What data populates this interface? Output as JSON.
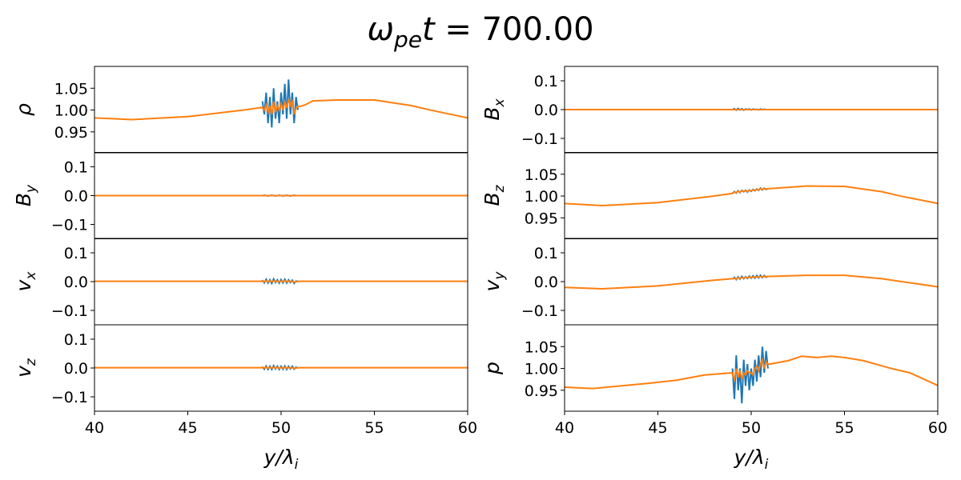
{
  "chart_data": {
    "type": "line",
    "title": {
      "symbol": "ω",
      "sub": "pe",
      "var": "t",
      "value": " = 700.00"
    },
    "xlabel": {
      "main": "y/λ",
      "sub": "i"
    },
    "xlim": [
      40,
      60
    ],
    "xticks": [
      "40",
      "45",
      "50",
      "55",
      "60"
    ],
    "grid": false,
    "colors": {
      "blue": "#1f77b4",
      "orange": "#ff7f0e"
    },
    "noise_x": [
      49.0,
      49.1,
      49.2,
      49.3,
      49.4,
      49.5,
      49.6,
      49.7,
      49.8,
      49.9,
      50.0,
      50.1,
      50.2,
      50.3,
      50.4,
      50.5,
      50.6,
      50.7,
      50.8,
      50.9
    ],
    "panels": [
      {
        "id": "rho",
        "column": "left",
        "row": 0,
        "ylabel": {
          "main": "ρ",
          "sub": ""
        },
        "ylim": [
          0.902,
          1.1
        ],
        "yticks": [
          "0.95",
          "1.00",
          "1.05"
        ],
        "orange": {
          "x": [
            40,
            42,
            45,
            48,
            49,
            51.0,
            51.3,
            51.7,
            53,
            55,
            57,
            58,
            60
          ],
          "y": [
            0.982,
            0.978,
            0.985,
            1.0,
            1.006,
            1.008,
            1.012,
            1.021,
            1.023,
            1.023,
            1.01,
            1.0,
            0.982
          ]
        },
        "orange_noise": [
          1.005,
          1.0,
          1.012,
          0.995,
          1.01,
          0.99,
          1.02,
          0.995,
          1.01,
          1.0,
          1.015,
          1.0,
          1.02,
          1.005,
          1.025,
          1.01,
          1.02,
          0.99,
          1.005,
          1.008
        ],
        "blue": [
          1.02,
          0.99,
          1.04,
          0.97,
          1.03,
          0.96,
          1.05,
          0.98,
          1.02,
          0.97,
          1.04,
          0.99,
          1.06,
          0.98,
          1.07,
          0.99,
          1.04,
          0.97,
          1.03,
          1.0
        ]
      },
      {
        "id": "By",
        "column": "left",
        "row": 1,
        "ylabel": {
          "main": "B",
          "sub": "y"
        },
        "ylim": [
          -0.15,
          0.15
        ],
        "yticks": [
          "−0.1",
          "0.0",
          "0.1"
        ],
        "orange": {
          "x": [
            40,
            60
          ],
          "y": [
            0,
            0
          ]
        },
        "orange_noise": null,
        "blue": [
          0,
          0.001,
          0,
          -0.001,
          0,
          0.001,
          0,
          -0.001,
          0,
          0.001,
          0,
          -0.001,
          0,
          0.001,
          0,
          -0.001,
          0,
          0.001,
          0,
          0
        ]
      },
      {
        "id": "vx",
        "column": "left",
        "row": 2,
        "ylabel": {
          "main": "v",
          "sub": "x"
        },
        "ylim": [
          -0.15,
          0.15
        ],
        "yticks": [
          "−0.1",
          "0.0",
          "0.1"
        ],
        "orange": {
          "x": [
            40,
            49,
            51,
            60
          ],
          "y": [
            0.001,
            0.001,
            0.001,
            0.001
          ]
        },
        "orange_noise": [
          0.002,
          0,
          0.003,
          -0.001,
          0.002,
          0,
          0.003,
          0,
          0.002,
          -0.001,
          0.002,
          0,
          0.003,
          -0.001,
          0.002,
          0,
          0.001,
          -0.002,
          0,
          0.001
        ],
        "blue": [
          0.005,
          -0.004,
          0.008,
          -0.005,
          0.006,
          -0.006,
          0.009,
          -0.003,
          0.006,
          -0.005,
          0.007,
          -0.004,
          0.008,
          -0.005,
          0.006,
          -0.003,
          0.005,
          -0.006,
          0.002,
          0
        ]
      },
      {
        "id": "vz",
        "column": "left",
        "row": 3,
        "ylabel": {
          "main": "v",
          "sub": "z"
        },
        "ylim": [
          -0.15,
          0.15
        ],
        "yticks": [
          "−0.1",
          "0.0",
          "0.1"
        ],
        "orange": {
          "x": [
            40,
            49,
            51,
            60
          ],
          "y": [
            0.001,
            0.001,
            0.001,
            0.001
          ]
        },
        "orange_noise": [
          0.002,
          0,
          0.003,
          -0.001,
          0.002,
          0,
          0.003,
          0,
          0.002,
          -0.001,
          0.002,
          0,
          0.003,
          -0.001,
          0.002,
          0,
          0.001,
          -0.002,
          0,
          0.001
        ],
        "blue": [
          0.004,
          -0.004,
          0.007,
          -0.005,
          0.006,
          -0.005,
          0.008,
          -0.003,
          0.006,
          -0.005,
          0.006,
          -0.004,
          0.007,
          -0.005,
          0.006,
          -0.003,
          0.006,
          -0.004,
          0.003,
          0
        ]
      },
      {
        "id": "Bx",
        "column": "right",
        "row": 0,
        "ylabel": {
          "main": "B",
          "sub": "x"
        },
        "ylim": [
          -0.15,
          0.15
        ],
        "yticks": [
          "−0.1",
          "0.0",
          "0.1"
        ],
        "orange": {
          "x": [
            40,
            60
          ],
          "y": [
            0,
            0
          ]
        },
        "orange_noise": null,
        "blue": [
          0,
          0.003,
          -0.002,
          0.004,
          -0.001,
          0.003,
          -0.002,
          0.002,
          0,
          0.002,
          -0.001,
          0.002,
          0,
          0.001,
          -0.001,
          0.002,
          0,
          0.001,
          0,
          0
        ]
      },
      {
        "id": "Bz",
        "column": "right",
        "row": 1,
        "ylabel": {
          "main": "B",
          "sub": "z"
        },
        "ylim": [
          0.902,
          1.1
        ],
        "yticks": [
          "0.95",
          "1.00",
          "1.05"
        ],
        "orange": {
          "x": [
            40,
            42,
            45,
            48,
            49,
            51,
            53,
            55,
            57,
            58,
            60
          ],
          "y": [
            0.983,
            0.978,
            0.985,
            1.0,
            1.006,
            1.017,
            1.023,
            1.022,
            1.01,
            1.0,
            0.983
          ]
        },
        "orange_noise": [
          1.007,
          1.009,
          1.008,
          1.011,
          1.009,
          1.012,
          1.011,
          1.012,
          1.01,
          1.013,
          1.012,
          1.014,
          1.013,
          1.015,
          1.014,
          1.017,
          1.015,
          1.017,
          1.016,
          1.017
        ],
        "blue": [
          1.006,
          1.01,
          1.007,
          1.012,
          1.008,
          1.013,
          1.01,
          1.013,
          1.009,
          1.014,
          1.011,
          1.015,
          1.012,
          1.016,
          1.013,
          1.018,
          1.014,
          1.018,
          1.015,
          1.017
        ]
      },
      {
        "id": "vy",
        "column": "right",
        "row": 2,
        "ylabel": {
          "main": "v",
          "sub": "y"
        },
        "ylim": [
          -0.15,
          0.15
        ],
        "yticks": [
          "−0.1",
          "0.0",
          "0.1"
        ],
        "orange": {
          "x": [
            40,
            42,
            45,
            48,
            49,
            51,
            53,
            55,
            57,
            60
          ],
          "y": [
            -0.02,
            -0.025,
            -0.015,
            0.005,
            0.01,
            0.018,
            0.022,
            0.022,
            0.01,
            -0.018
          ]
        },
        "orange_noise": [
          0.01,
          0.012,
          0.009,
          0.013,
          0.011,
          0.014,
          0.012,
          0.015,
          0.013,
          0.016,
          0.014,
          0.016,
          0.015,
          0.017,
          0.015,
          0.018,
          0.016,
          0.018,
          0.017,
          0.018
        ],
        "blue": [
          0.008,
          0.015,
          0.007,
          0.016,
          0.009,
          0.018,
          0.01,
          0.017,
          0.011,
          0.019,
          0.012,
          0.02,
          0.012,
          0.021,
          0.013,
          0.022,
          0.014,
          0.021,
          0.015,
          0.018
        ]
      },
      {
        "id": "p",
        "column": "right",
        "row": 3,
        "ylabel": {
          "main": "p",
          "sub": ""
        },
        "ylim": [
          0.902,
          1.1
        ],
        "yticks": [
          "0.95",
          "1.00",
          "1.05"
        ],
        "orange": {
          "x": [
            40,
            41.5,
            43,
            44.5,
            46,
            47.5,
            49,
            51,
            52,
            52.7,
            53.5,
            54.3,
            55,
            56,
            57.5,
            58.5,
            60
          ],
          "y": [
            0.957,
            0.954,
            0.96,
            0.966,
            0.973,
            0.985,
            0.99,
            1.01,
            1.018,
            1.028,
            1.025,
            1.028,
            1.025,
            1.018,
            1.0,
            0.99,
            0.961
          ]
        },
        "orange_noise": [
          0.985,
          0.975,
          1.0,
          0.98,
          0.995,
          0.975,
          0.99,
          0.985,
          0.995,
          0.99,
          0.99,
          0.985,
          1.0,
          1.005,
          0.995,
          1.01,
          1.02,
          1.0,
          1.015,
          1.01
        ],
        "blue": [
          1.0,
          0.93,
          1.03,
          0.95,
          1.0,
          0.92,
          1.02,
          0.96,
          1.01,
          0.95,
          1.0,
          0.96,
          1.02,
          0.97,
          1.03,
          0.98,
          1.05,
          0.99,
          1.04,
          1.0
        ]
      }
    ]
  }
}
